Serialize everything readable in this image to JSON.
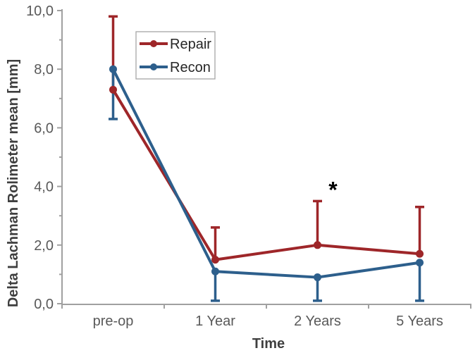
{
  "figure": {
    "background": "#FFFFFF"
  },
  "chart_data": {
    "type": "line",
    "title": "",
    "xlabel": "Time",
    "ylabel": "Delta Lachman Rolimeter mean [mm]",
    "categories": [
      "pre-op",
      "1 Year",
      "2 Years",
      "5 Years"
    ],
    "y_axis": {
      "min": 0,
      "max": 10,
      "major_step": 2,
      "minor_step": 1,
      "tick_labels": [
        "0,0",
        "2,0",
        "4,0",
        "6,0",
        "8,0",
        "10,0"
      ],
      "decimal_separator": "comma"
    },
    "series": [
      {
        "name": "Repair",
        "color": "#9E2629",
        "values": [
          7.3,
          1.5,
          2.0,
          1.7
        ],
        "error_upper": [
          9.8,
          2.6,
          3.5,
          3.3
        ],
        "error_lower": [
          null,
          null,
          null,
          null
        ]
      },
      {
        "name": "Recon",
        "color": "#2D5F8C",
        "values": [
          8.0,
          1.1,
          0.9,
          1.4
        ],
        "error_upper": [
          null,
          null,
          null,
          null
        ],
        "error_lower": [
          6.3,
          0.1,
          0.1,
          0.1
        ]
      }
    ],
    "annotations": [
      {
        "text": "*",
        "category_index": 2,
        "y_value": 3.95
      }
    ],
    "legend": {
      "position": "inside-top-left",
      "entries": [
        "Repair",
        "Recon"
      ]
    },
    "grid": false,
    "colors": {
      "axis_line": "#A0A0A0",
      "tick_label": "#595959",
      "axis_title": "#3F3F3F",
      "legend_text": "#262626",
      "legend_border": "#A6A6A6",
      "annotation": "#000000"
    }
  }
}
